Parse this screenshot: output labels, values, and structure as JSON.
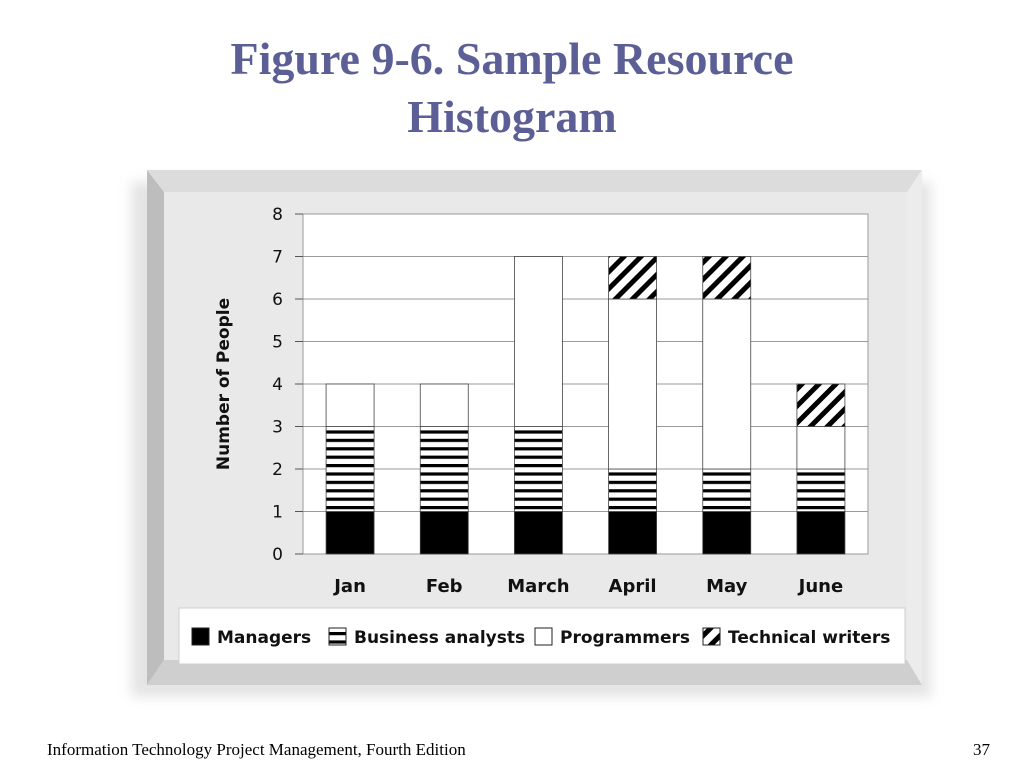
{
  "slide": {
    "title_line1": "Figure 9-6. Sample Resource",
    "title_line2": "Histogram",
    "footer_left": "Information Technology Project Management, Fourth Edition",
    "page_number": "37",
    "title_color": "#5b5f96"
  },
  "chart_data": {
    "type": "bar",
    "stacked": true,
    "categories": [
      "Jan",
      "Feb",
      "March",
      "April",
      "May",
      "June"
    ],
    "series": [
      {
        "name": "Managers",
        "values": [
          1,
          1,
          1,
          1,
          1,
          1
        ],
        "pattern": "solid-black"
      },
      {
        "name": "Business analysts",
        "values": [
          2,
          2,
          2,
          1,
          1,
          1
        ],
        "pattern": "horizontal-stripes"
      },
      {
        "name": "Programmers",
        "values": [
          1,
          1,
          4,
          4,
          4,
          1
        ],
        "pattern": "white"
      },
      {
        "name": "Technical writers",
        "values": [
          0,
          0,
          0,
          1,
          1,
          1
        ],
        "pattern": "diagonal-stripes"
      }
    ],
    "ylabel": "Number of People",
    "xlabel": "",
    "ylim": [
      0,
      8
    ],
    "yticks": [
      0,
      1,
      2,
      3,
      4,
      5,
      6,
      7,
      8
    ],
    "grid": true,
    "legend_position": "bottom"
  }
}
